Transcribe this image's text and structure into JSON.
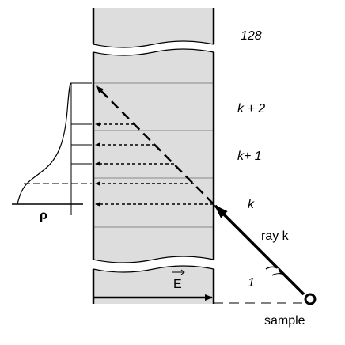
{
  "labels": {
    "top_layer": "128",
    "layer_k2": "k + 2",
    "layer_k1": "k+ 1",
    "layer_k": "k",
    "ray": "ray k",
    "bottom_layer": "1",
    "field": "E",
    "density": "ρ",
    "sample": "sample"
  }
}
